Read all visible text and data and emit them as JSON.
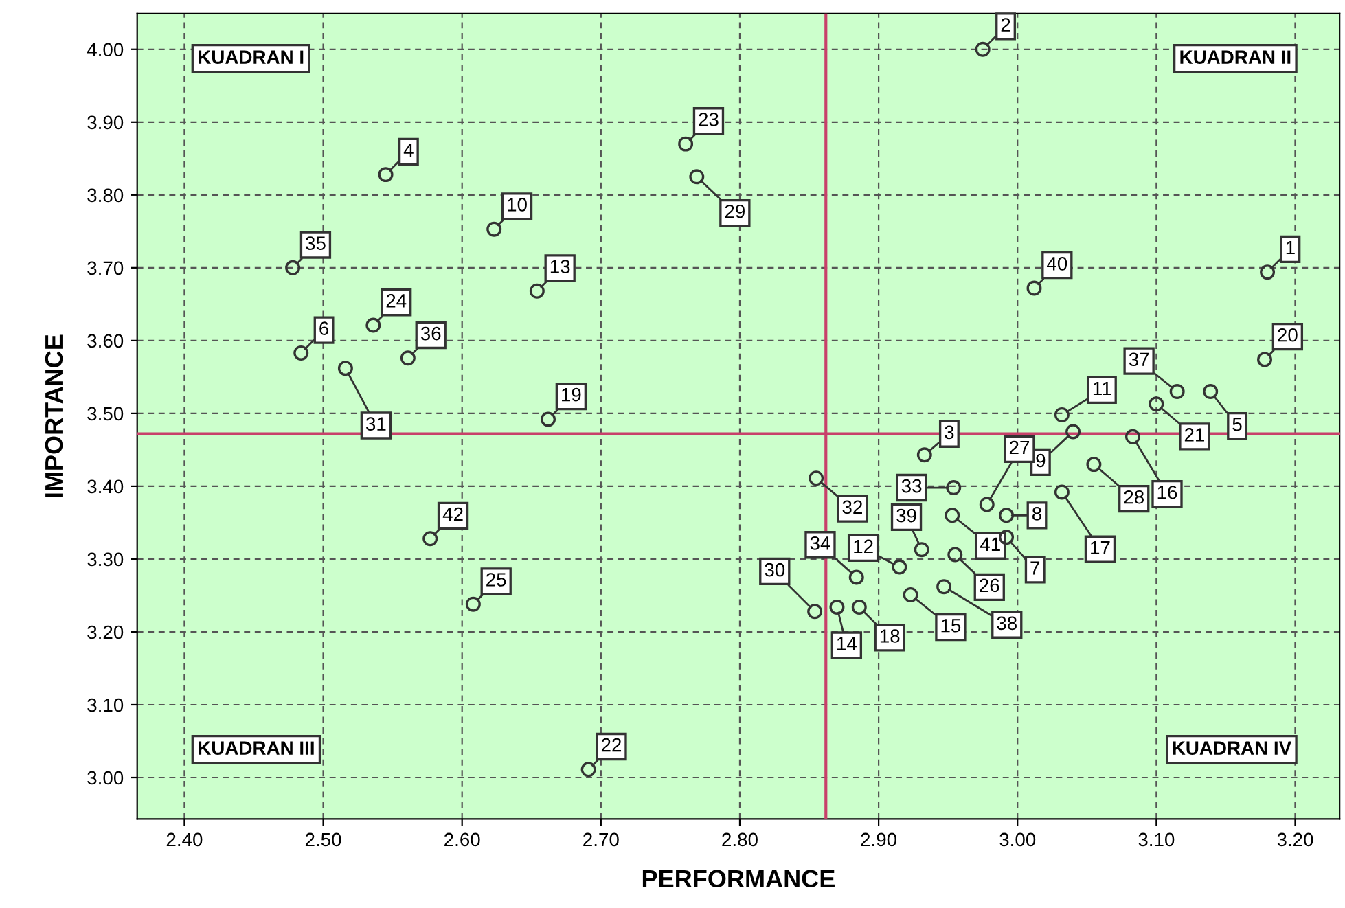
{
  "chart_data": {
    "type": "scatter",
    "xlabel": "PERFORMANCE",
    "ylabel": "IMPORTANCE",
    "xlim": [
      2.366,
      3.232
    ],
    "ylim": [
      2.943,
      4.049
    ],
    "xticks": [
      {
        "value": 2.4,
        "label": "2.40"
      },
      {
        "value": 2.5,
        "label": "2.50"
      },
      {
        "value": 2.6,
        "label": "2.60"
      },
      {
        "value": 2.7,
        "label": "2.70"
      },
      {
        "value": 2.8,
        "label": "2.80"
      },
      {
        "value": 2.9,
        "label": "2.90"
      },
      {
        "value": 3.0,
        "label": "3.00"
      },
      {
        "value": 3.1,
        "label": "3.10"
      },
      {
        "value": 3.2,
        "label": "3.20"
      }
    ],
    "yticks": [
      {
        "value": 3.0,
        "label": "3.00"
      },
      {
        "value": 3.1,
        "label": "3.10"
      },
      {
        "value": 3.2,
        "label": "3.20"
      },
      {
        "value": 3.3,
        "label": "3.30"
      },
      {
        "value": 3.4,
        "label": "3.40"
      },
      {
        "value": 3.5,
        "label": "3.50"
      },
      {
        "value": 3.6,
        "label": "3.60"
      },
      {
        "value": 3.7,
        "label": "3.70"
      },
      {
        "value": 3.8,
        "label": "3.80"
      },
      {
        "value": 3.9,
        "label": "3.90"
      },
      {
        "value": 4.0,
        "label": "4.00"
      }
    ],
    "grid": true,
    "marker": "circle",
    "legend": false,
    "series": [
      {
        "color": "#333333",
        "x": [
          3.18,
          2.975,
          2.933,
          2.545,
          3.139,
          2.484,
          2.992,
          2.992,
          3.04,
          2.623,
          3.032,
          2.915,
          2.654,
          2.87,
          2.923,
          3.083,
          3.032,
          2.886,
          2.662,
          3.178,
          3.1,
          2.691,
          2.761,
          2.536,
          2.608,
          2.955,
          2.978,
          3.055,
          2.769,
          2.854,
          2.516,
          2.855,
          2.954,
          2.884,
          2.478,
          2.561,
          3.115,
          2.947,
          2.931,
          3.012,
          2.953,
          2.577
        ],
        "values": [
          3.694,
          4.0,
          3.443,
          3.828,
          3.53,
          3.583,
          3.33,
          3.36,
          3.475,
          3.753,
          3.498,
          3.289,
          3.668,
          3.234,
          3.251,
          3.468,
          3.392,
          3.234,
          3.492,
          3.574,
          3.513,
          3.011,
          3.87,
          3.621,
          3.238,
          3.306,
          3.375,
          3.43,
          3.825,
          3.228,
          3.562,
          3.411,
          3.398,
          3.275,
          3.7,
          3.576,
          3.53,
          3.262,
          3.313,
          3.672,
          3.36,
          3.328
        ]
      }
    ],
    "ref_lines": [
      {
        "axis": "x",
        "value": 2.862,
        "color": "#c8406a"
      },
      {
        "axis": "y",
        "value": 3.472,
        "color": "#c8406a"
      }
    ],
    "annotations": [
      "KUADRAN I",
      "KUADRAN II",
      "KUADRAN III",
      "KUADRAN IV",
      {
        "text": "1",
        "x": 3.18,
        "y": 3.694
      },
      {
        "text": "2",
        "x": 2.975,
        "y": 4.0
      },
      {
        "text": "3",
        "x": 2.933,
        "y": 3.443
      },
      {
        "text": "4",
        "x": 2.545,
        "y": 3.828
      },
      {
        "text": "5",
        "x": 3.139,
        "y": 3.53
      },
      {
        "text": "6",
        "x": 2.484,
        "y": 3.583
      },
      {
        "text": "7",
        "x": 2.992,
        "y": 3.33
      },
      {
        "text": "8",
        "x": 2.992,
        "y": 3.36
      },
      {
        "text": "9",
        "x": 3.04,
        "y": 3.475
      },
      {
        "text": "10",
        "x": 2.623,
        "y": 3.753
      },
      {
        "text": "11",
        "x": 3.032,
        "y": 3.498
      },
      {
        "text": "12",
        "x": 2.915,
        "y": 3.289
      },
      {
        "text": "13",
        "x": 2.654,
        "y": 3.668
      },
      {
        "text": "14",
        "x": 2.87,
        "y": 3.234
      },
      {
        "text": "15",
        "x": 2.923,
        "y": 3.251
      },
      {
        "text": "16",
        "x": 3.083,
        "y": 3.468
      },
      {
        "text": "17",
        "x": 3.032,
        "y": 3.392
      },
      {
        "text": "18",
        "x": 2.886,
        "y": 3.234
      },
      {
        "text": "19",
        "x": 2.662,
        "y": 3.492
      },
      {
        "text": "20",
        "x": 3.178,
        "y": 3.574
      },
      {
        "text": "21",
        "x": 3.1,
        "y": 3.513
      },
      {
        "text": "22",
        "x": 2.691,
        "y": 3.011
      },
      {
        "text": "23",
        "x": 2.761,
        "y": 3.87
      },
      {
        "text": "24",
        "x": 2.536,
        "y": 3.621
      },
      {
        "text": "25",
        "x": 2.608,
        "y": 3.238
      },
      {
        "text": "26",
        "x": 2.955,
        "y": 3.306
      },
      {
        "text": "27",
        "x": 2.978,
        "y": 3.375
      },
      {
        "text": "28",
        "x": 3.055,
        "y": 3.43
      },
      {
        "text": "29",
        "x": 2.769,
        "y": 3.825
      },
      {
        "text": "30",
        "x": 2.854,
        "y": 3.228
      },
      {
        "text": "31",
        "x": 2.516,
        "y": 3.562
      },
      {
        "text": "32",
        "x": 2.855,
        "y": 3.411
      },
      {
        "text": "33",
        "x": 2.954,
        "y": 3.398
      },
      {
        "text": "34",
        "x": 2.884,
        "y": 3.275
      },
      {
        "text": "35",
        "x": 2.478,
        "y": 3.7
      },
      {
        "text": "36",
        "x": 2.561,
        "y": 3.576
      },
      {
        "text": "37",
        "x": 3.115,
        "y": 3.53
      },
      {
        "text": "38",
        "x": 2.947,
        "y": 3.262
      },
      {
        "text": "39",
        "x": 2.931,
        "y": 3.313
      },
      {
        "text": "40",
        "x": 3.012,
        "y": 3.672
      },
      {
        "text": "41",
        "x": 2.953,
        "y": 3.36
      },
      {
        "text": "42",
        "x": 2.577,
        "y": 3.328
      }
    ]
  }
}
